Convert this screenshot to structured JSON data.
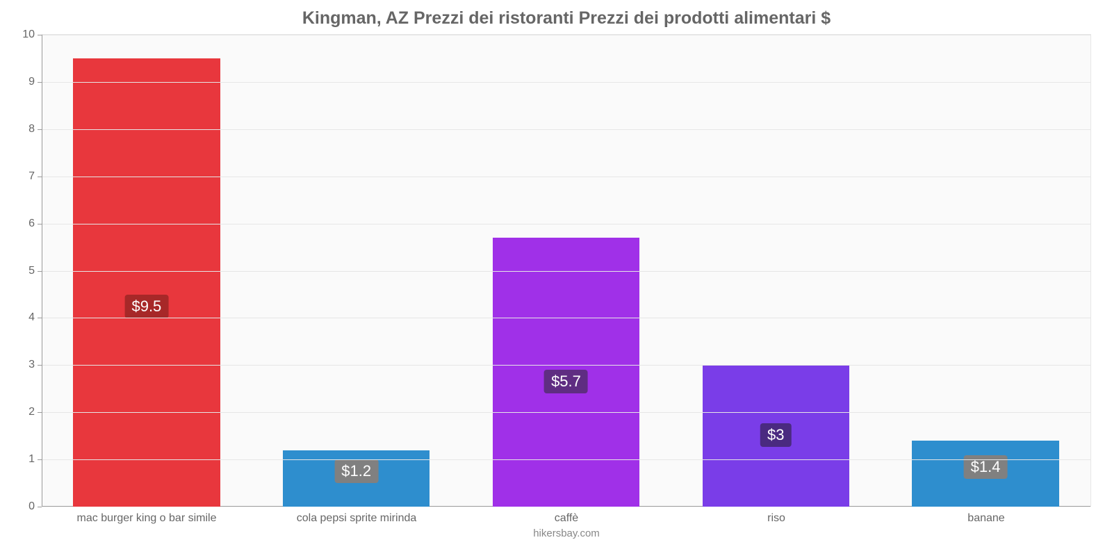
{
  "chart": {
    "type": "bar",
    "title": "Kingman, AZ Prezzi dei ristoranti Prezzi dei prodotti alimentari $",
    "title_fontsize": 25,
    "title_color": "#666666",
    "background_color": "#fafafa",
    "grid_color": "#e6e6e6",
    "axis_color": "#999999",
    "tick_label_color": "#666666",
    "tick_label_fontsize": 16,
    "caption": "hikersbay.com",
    "caption_color": "#888888",
    "y": {
      "min": 0,
      "max": 10,
      "step": 1,
      "ticks": [
        "0",
        "1",
        "2",
        "3",
        "4",
        "5",
        "6",
        "7",
        "8",
        "9",
        "10"
      ]
    },
    "bar_width_ratio": 0.7,
    "value_label_fontsize": 22,
    "value_label_text_color": "#ffffff",
    "items": [
      {
        "category": "mac burger king o bar simile",
        "value": 9.5,
        "display": "$9.5",
        "bar_color": "#e8373d",
        "label_bg": "#a72828"
      },
      {
        "category": "cola pepsi sprite mirinda",
        "value": 1.2,
        "display": "$1.2",
        "bar_color": "#2e8ece",
        "label_bg": "#808080"
      },
      {
        "category": "caffè",
        "value": 5.7,
        "display": "$5.7",
        "bar_color": "#a030e8",
        "label_bg": "#5f2d82"
      },
      {
        "category": "riso",
        "value": 3.0,
        "display": "$3",
        "bar_color": "#7a3de8",
        "label_bg": "#4a2a80"
      },
      {
        "category": "banane",
        "value": 1.4,
        "display": "$1.4",
        "bar_color": "#2e8ece",
        "label_bg": "#808080"
      }
    ]
  }
}
